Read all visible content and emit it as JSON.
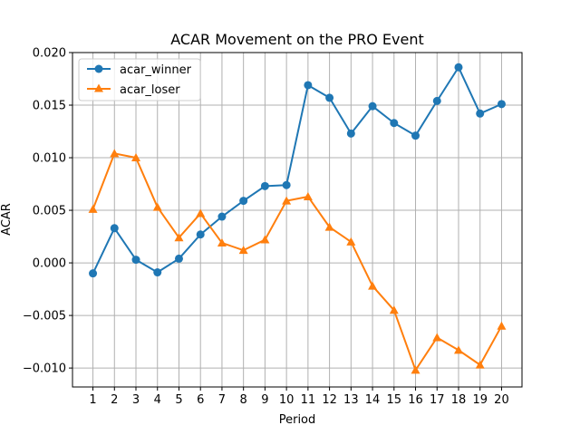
{
  "chart_data": {
    "type": "line",
    "title": "ACAR Movement on the PRO Event",
    "xlabel": "Period",
    "ylabel": "ACAR",
    "x": [
      1,
      2,
      3,
      4,
      5,
      6,
      7,
      8,
      9,
      10,
      11,
      12,
      13,
      14,
      15,
      16,
      17,
      18,
      19,
      20
    ],
    "xticks": [
      "1",
      "2",
      "3",
      "4",
      "5",
      "6",
      "7",
      "8",
      "9",
      "10",
      "11",
      "12",
      "13",
      "14",
      "15",
      "16",
      "17",
      "18",
      "19",
      "20"
    ],
    "xlim": [
      0.05,
      20.95
    ],
    "ylim": [
      -0.0118,
      0.02
    ],
    "yticks": [
      -0.01,
      -0.005,
      0.0,
      0.005,
      0.01,
      0.015,
      0.02
    ],
    "ytick_labels": [
      "−0.010",
      "−0.005",
      "0.000",
      "0.005",
      "0.010",
      "0.015",
      "0.020"
    ],
    "grid": true,
    "legend_position": "top-left",
    "series": [
      {
        "name": "acar_winner",
        "color": "#1f77b4",
        "marker": "circle",
        "values": [
          -0.001,
          0.0033,
          0.0003,
          -0.0009,
          0.0004,
          0.0027,
          0.0044,
          0.0059,
          0.0073,
          0.0074,
          0.0169,
          0.0157,
          0.0123,
          0.0149,
          0.0133,
          0.0121,
          0.0154,
          0.0186,
          0.0142,
          0.0151
        ]
      },
      {
        "name": "acar_loser",
        "color": "#ff7f0e",
        "marker": "triangle",
        "values": [
          0.0051,
          0.0104,
          0.01,
          0.0053,
          0.0024,
          0.0047,
          0.0019,
          0.0012,
          0.0022,
          0.0059,
          0.0063,
          0.0034,
          0.002,
          -0.0022,
          -0.0045,
          -0.0102,
          -0.0071,
          -0.0083,
          -0.0097,
          -0.006
        ]
      }
    ]
  }
}
